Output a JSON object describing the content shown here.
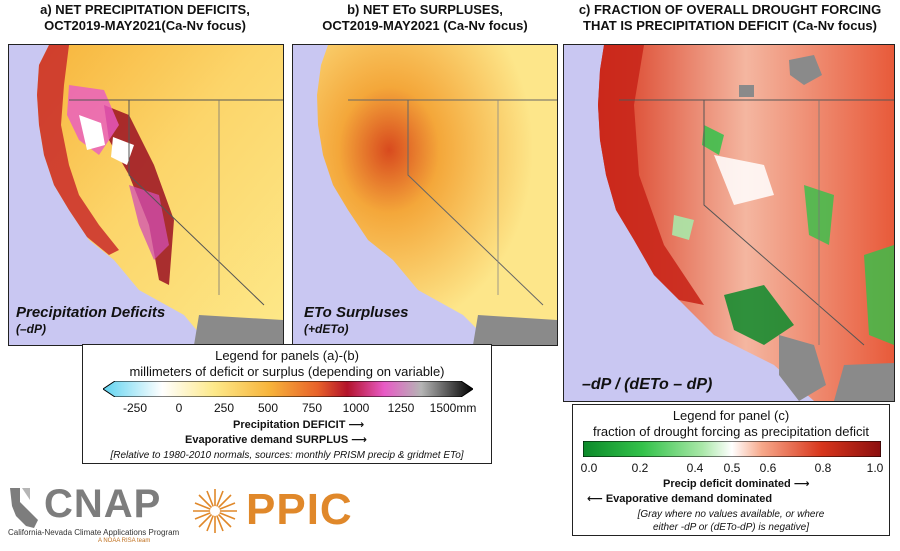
{
  "panel_a": {
    "title_line1": "a) NET PRECIPITATION DEFICITS,",
    "title_line2": "OCT2019-MAY2021(Ca-Nv focus)",
    "label": "Precipitation Deficits",
    "sublabel": "(–dP)"
  },
  "panel_b": {
    "title_line1": "b) NET ETo SURPLUSES,",
    "title_line2": "OCT2019-MAY2021 (Ca-Nv focus)",
    "label": "ETo Surpluses",
    "sublabel": "(+dETo)"
  },
  "panel_c": {
    "title_line1": "c) FRACTION OF OVERALL DROUGHT FORCING",
    "title_line2": "THAT IS PRECIPITATION DEFICIT (Ca-Nv focus)",
    "label": "–dP / (dETo – dP)"
  },
  "legend_ab": {
    "title1": "Legend for panels (a)-(b)",
    "title2": "millimeters of deficit or surplus (depending on variable)",
    "ticks": [
      "-250",
      "0",
      "250",
      "500",
      "750",
      "1000",
      "1250",
      "1500mm"
    ],
    "arrow1": "Precipitation DEFICIT",
    "arrow2": "Evaporative demand SURPLUS",
    "note": "[Relative to 1980-2010 normals, sources: monthly PRISM precip & gridmet ETo]",
    "colors": [
      "#5fd3f0",
      "#ffffff",
      "#fde98a",
      "#f7b43b",
      "#e8622a",
      "#b3132b",
      "#e85ac6",
      "#b5b5b5",
      "#000000"
    ]
  },
  "legend_c": {
    "title1": "Legend for panel (c)",
    "title2": "fraction of drought forcing as precipitation deficit",
    "ticks": [
      "0.0",
      "0.2",
      "0.4",
      "0.5",
      "0.6",
      "0.8",
      "1.0"
    ],
    "arrow1": "Precip deficit dominated",
    "arrow2": "Evaporative demand dominated",
    "note1": "[Gray where no values available, or where",
    "note2": "either -dP or (dETo-dP) is negative]",
    "colors": [
      "#0c8a2a",
      "#33c24a",
      "#a9e8a8",
      "#ffffff",
      "#f7a88a",
      "#d8361c",
      "#8c0f0f"
    ]
  },
  "logos": {
    "cnap_name": "CNAP",
    "cnap_sub": "California-Nevada Climate Applications Program",
    "cnap_sub2": "A NOAA RISA team",
    "ppic_name": "PPIC"
  },
  "colors": {
    "ocean": "#c9c7f2",
    "land_gray": "#8a8a8a",
    "cnap_gray": "#7d7d7d",
    "ppic_orange": "#e0882a"
  }
}
